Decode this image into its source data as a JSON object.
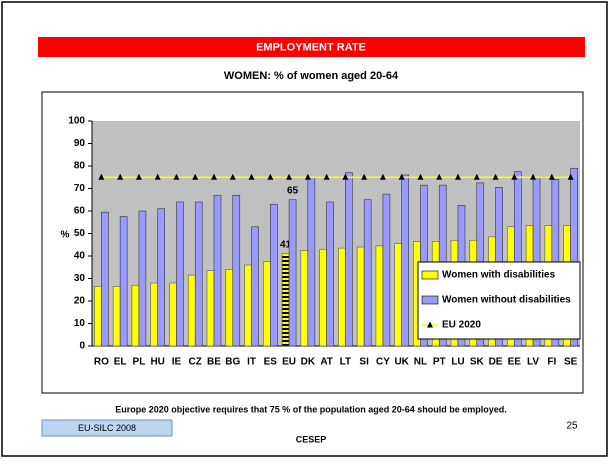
{
  "slide": {
    "header": "EMPLOYMENT RATE",
    "note": "Europe 2020 objective requires that 75 % of the population aged 20-64 should be employed.",
    "source": "EU-SILC 2008",
    "org": "CESEP",
    "page": "25"
  },
  "chart_data": {
    "type": "bar",
    "title": "WOMEN: % of women aged 20-64",
    "y_label": "%",
    "categories": [
      "RO",
      "EL",
      "PL",
      "HU",
      "IE",
      "CZ",
      "BE",
      "BG",
      "IT",
      "ES",
      "EU",
      "DK",
      "AT",
      "LT",
      "SI",
      "CY",
      "UK",
      "NL",
      "PT",
      "LU",
      "SK",
      "DE",
      "EE",
      "LV",
      "FI",
      "SE"
    ],
    "series": [
      {
        "name": "Women with disabilities",
        "color": "#ffff00",
        "highlight": "EU",
        "values": [
          26.5,
          26.5,
          27,
          28,
          28,
          31.5,
          33.5,
          34,
          36,
          37.5,
          41,
          42.5,
          43,
          43.5,
          44,
          44.5,
          45.5,
          46.5,
          46.5,
          47,
          47,
          48.5,
          53,
          53.5,
          53.5,
          53.5
        ]
      },
      {
        "name": "Women without disabilities",
        "color": "#9999ff",
        "highlight": "EU",
        "values": [
          59.5,
          57.5,
          60,
          61,
          64,
          64,
          67,
          67,
          53,
          63,
          65,
          75,
          64,
          77,
          65,
          67.5,
          76,
          71.5,
          71.5,
          62.5,
          72.5,
          70.5,
          77.5,
          75,
          74,
          79
        ]
      },
      {
        "name": "EU 2020",
        "color": "#ffff00",
        "type": "line",
        "values": [
          75,
          75,
          75,
          75,
          75,
          75,
          75,
          75,
          75,
          75,
          75,
          75,
          75,
          75,
          75,
          75,
          75,
          75,
          75,
          75,
          75,
          75,
          75,
          75,
          75,
          75
        ]
      }
    ],
    "ylim": [
      0,
      100
    ],
    "yticks": [
      0,
      10,
      20,
      30,
      40,
      50,
      60,
      70,
      80,
      90,
      100
    ],
    "grid": false,
    "legend": "lower right",
    "plot_color": "#c0c0c0"
  }
}
